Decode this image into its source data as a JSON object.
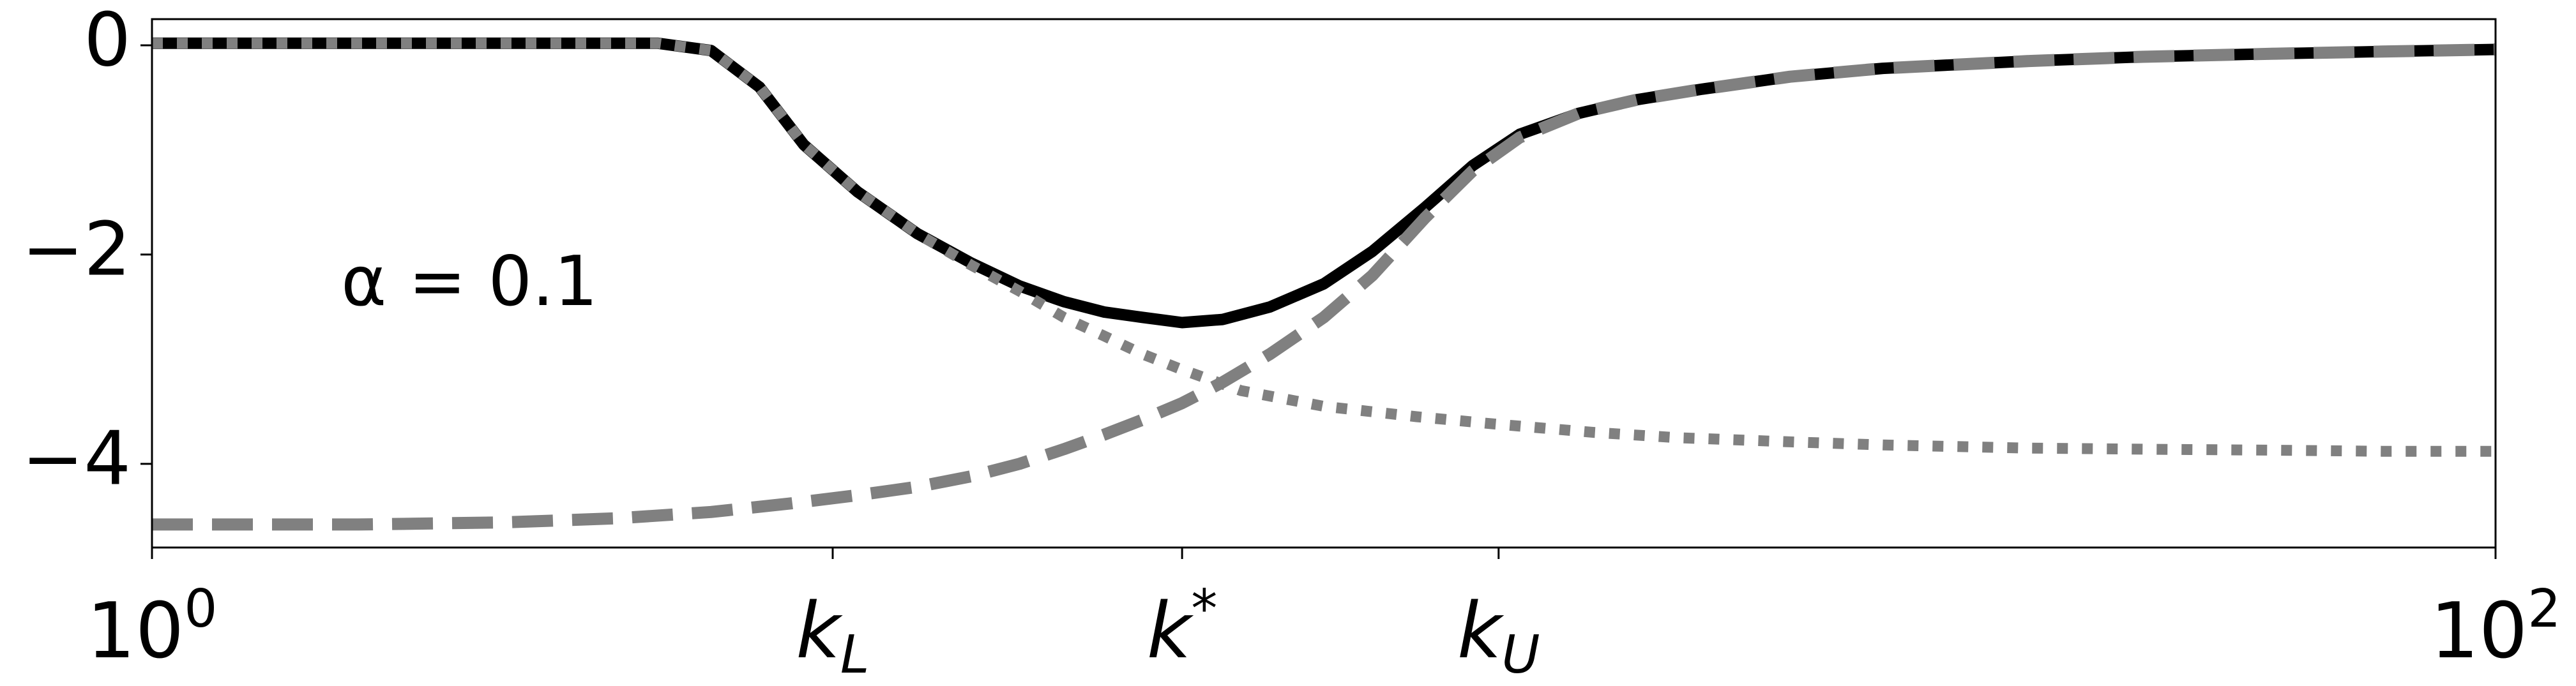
{
  "chart_data": {
    "type": "line",
    "title": "",
    "xlabel": "",
    "ylabel": "",
    "xscale": "log",
    "xlim": [
      1,
      100
    ],
    "ylim": [
      -4.8,
      0.25
    ],
    "grid": false,
    "legend": "none",
    "annotation": {
      "text": "α = 0.1",
      "x": 1.45,
      "y": -2.3
    },
    "x_ticks": [
      {
        "value": 1,
        "base": "10",
        "sup": "0",
        "sub": ""
      },
      {
        "value": 3.81,
        "base": "k",
        "sup": "",
        "sub": "L"
      },
      {
        "value": 7.57,
        "base": "k",
        "sup": "*",
        "sub": ""
      },
      {
        "value": 14.1,
        "base": "k",
        "sup": "",
        "sub": "U"
      },
      {
        "value": 100,
        "base": "10",
        "sup": "2",
        "sub": ""
      }
    ],
    "y_ticks": [
      {
        "value": 0,
        "label": "0"
      },
      {
        "value": -2,
        "label": "−2"
      },
      {
        "value": -4,
        "label": "−4"
      }
    ],
    "series": [
      {
        "style": "solid",
        "color": "#000000",
        "x": [
          1,
          1.5,
          2.0,
          2.7,
          3.0,
          3.3,
          3.6,
          4.0,
          4.5,
          5.0,
          5.5,
          6.0,
          6.5,
          7.0,
          7.57,
          8.2,
          9.0,
          10.0,
          11.0,
          12.2,
          13.4,
          14.7,
          16.5,
          18.5,
          21,
          25,
          30,
          40,
          50,
          65,
          80,
          100
        ],
        "y": [
          0.02,
          0.02,
          0.02,
          0.02,
          -0.05,
          -0.4,
          -0.95,
          -1.4,
          -1.8,
          -2.08,
          -2.3,
          -2.45,
          -2.55,
          -2.6,
          -2.65,
          -2.62,
          -2.5,
          -2.28,
          -1.97,
          -1.55,
          -1.15,
          -0.85,
          -0.65,
          -0.52,
          -0.42,
          -0.3,
          -0.22,
          -0.15,
          -0.11,
          -0.08,
          -0.06,
          -0.04
        ]
      },
      {
        "style": "dotted",
        "color": "#808080",
        "x": [
          1,
          1.5,
          2.0,
          2.7,
          3.0,
          3.3,
          3.6,
          4.0,
          4.5,
          5.0,
          5.5,
          6.0,
          6.5,
          7.0,
          7.57,
          8.5,
          10,
          12,
          14,
          17,
          20,
          25,
          30,
          40,
          50,
          65,
          80,
          100
        ],
        "y": [
          0.02,
          0.02,
          0.02,
          0.02,
          -0.05,
          -0.4,
          -0.95,
          -1.4,
          -1.8,
          -2.1,
          -2.35,
          -2.6,
          -2.78,
          -2.95,
          -3.1,
          -3.3,
          -3.45,
          -3.55,
          -3.62,
          -3.7,
          -3.75,
          -3.79,
          -3.82,
          -3.85,
          -3.86,
          -3.87,
          -3.88,
          -3.88
        ]
      },
      {
        "style": "dashed",
        "color": "#808080",
        "x": [
          1,
          1.5,
          2,
          2.5,
          3,
          3.5,
          4,
          4.5,
          5,
          5.5,
          6,
          6.5,
          7,
          7.57,
          8.2,
          9,
          10,
          11,
          12.2,
          13.4,
          14.7,
          16.5,
          18.5,
          21,
          25,
          30,
          40,
          50,
          65,
          80,
          100
        ],
        "y": [
          -4.58,
          -4.58,
          -4.56,
          -4.52,
          -4.46,
          -4.38,
          -4.3,
          -4.22,
          -4.12,
          -4.0,
          -3.86,
          -3.72,
          -3.58,
          -3.42,
          -3.22,
          -2.95,
          -2.6,
          -2.2,
          -1.65,
          -1.2,
          -0.88,
          -0.65,
          -0.52,
          -0.42,
          -0.3,
          -0.22,
          -0.15,
          -0.11,
          -0.08,
          -0.06,
          -0.04
        ]
      }
    ]
  }
}
